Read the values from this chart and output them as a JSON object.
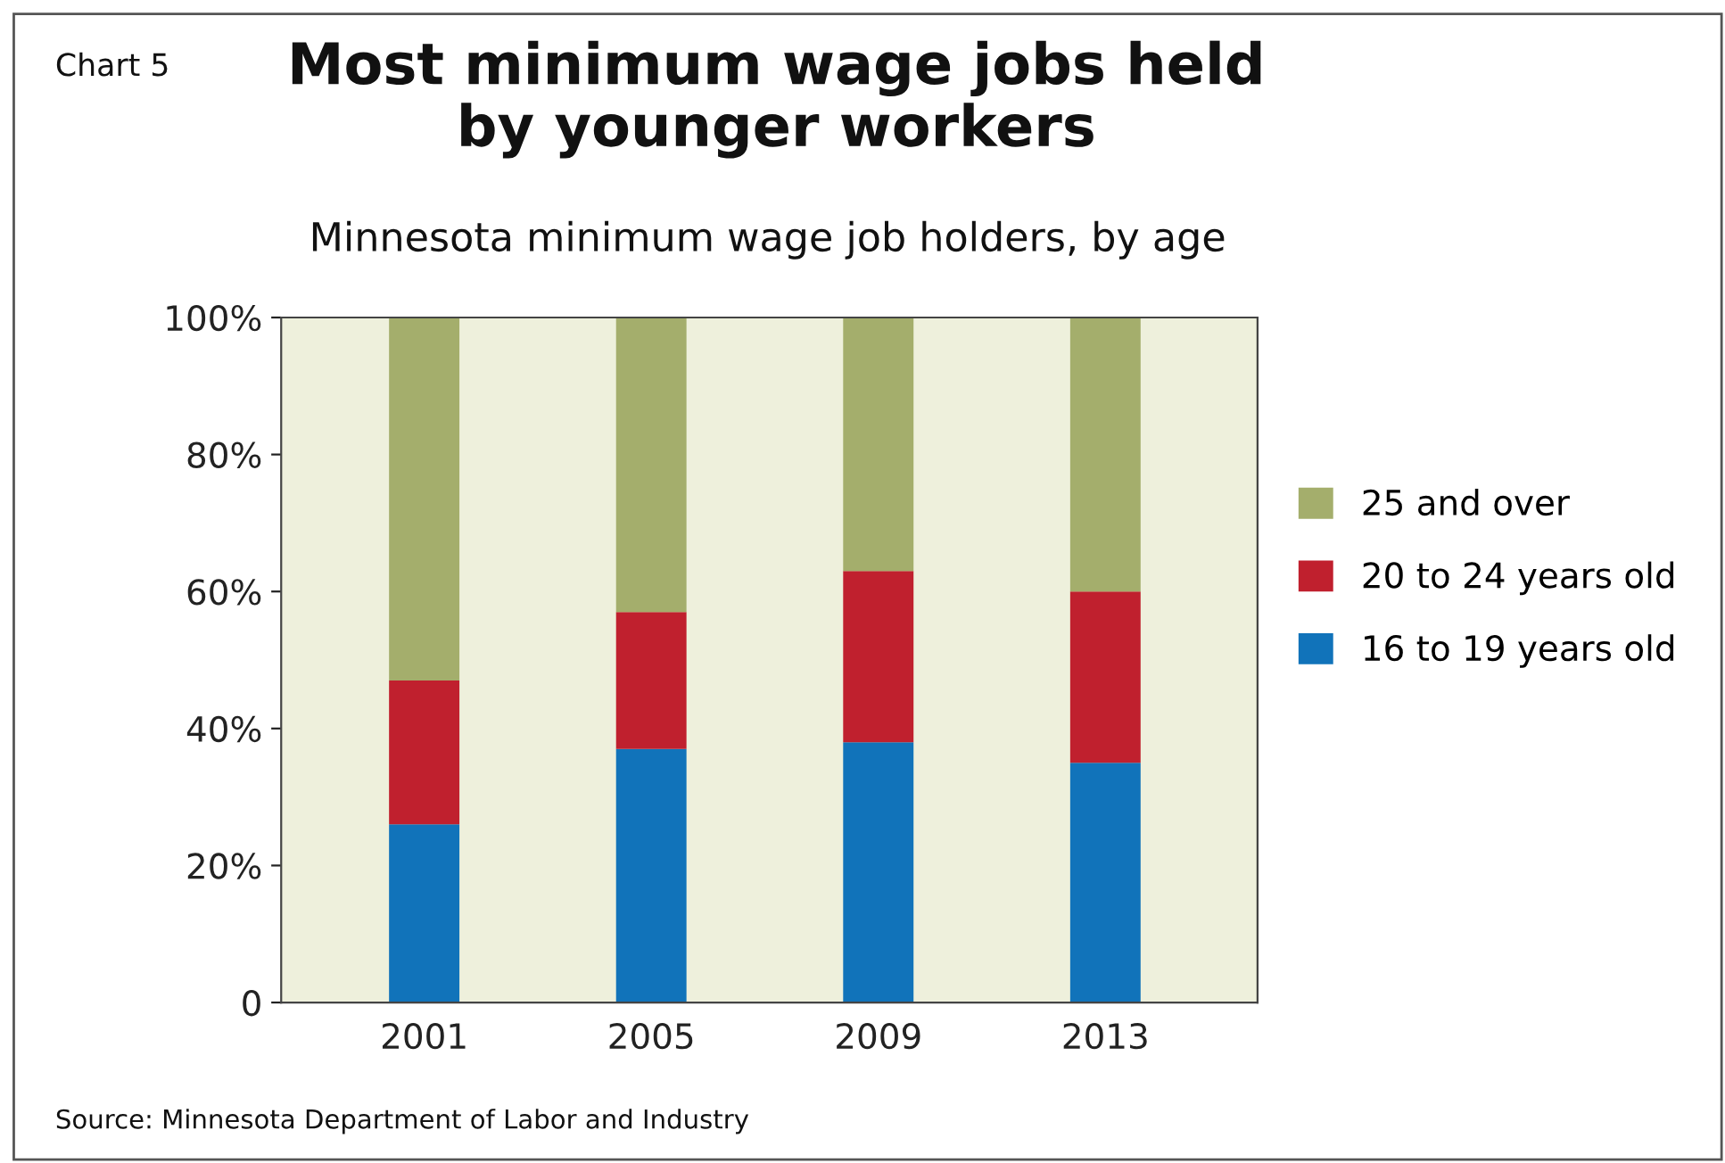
{
  "chart_data": {
    "type": "bar",
    "stacked": true,
    "title": "Most minimum wage jobs held\nby younger workers",
    "subtitle": "Minnesota minimum wage job holders, by age",
    "categories": [
      "2001",
      "2005",
      "2009",
      "2013"
    ],
    "series": [
      {
        "name": "16 to 19 years old",
        "color": "#1173ba",
        "values": [
          26,
          37,
          38,
          35
        ]
      },
      {
        "name": "20 to 24 years old",
        "color": "#c0202e",
        "values": [
          21,
          20,
          25,
          25
        ]
      },
      {
        "name": "25 and over",
        "color": "#a4ae6c",
        "values": [
          53,
          43,
          37,
          40
        ]
      }
    ],
    "ylim": [
      0,
      100
    ],
    "yticks": [
      {
        "value": 0,
        "label": "0"
      },
      {
        "value": 20,
        "label": "20%"
      },
      {
        "value": 40,
        "label": "40%"
      },
      {
        "value": 60,
        "label": "60%"
      },
      {
        "value": 80,
        "label": "80%"
      },
      {
        "value": 100,
        "label": "100%"
      }
    ],
    "grid": false,
    "legend": "right",
    "annotations": [
      "Chart 5",
      "Source: Minnesota Department of Labor and Industry"
    ]
  }
}
